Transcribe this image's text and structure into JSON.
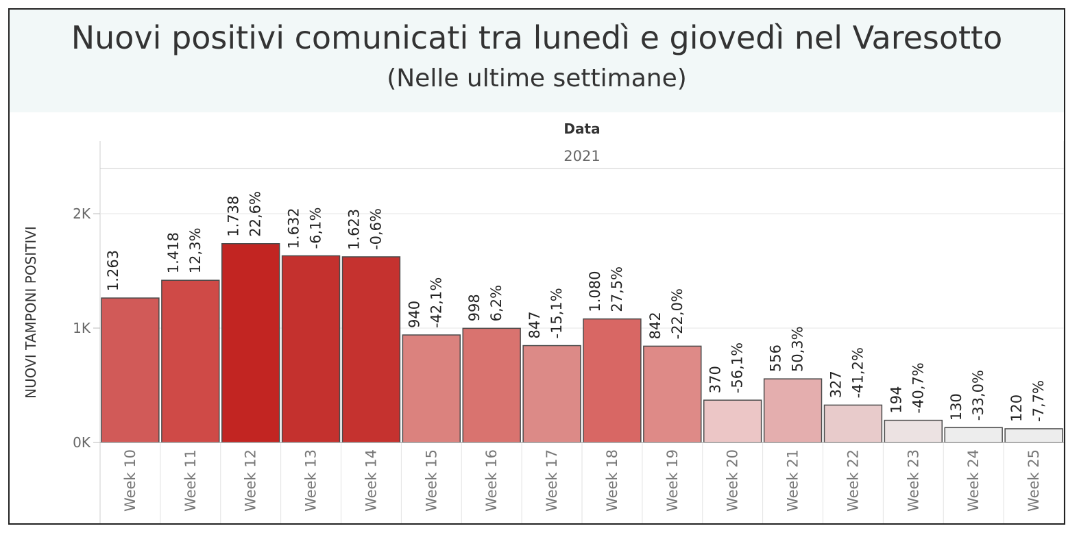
{
  "title": "Nuovi positivi comunicati tra lunedì e giovedì nel Varesotto",
  "subtitle": "(Nelle ultime settimane)",
  "chart_data": {
    "type": "bar",
    "column_header": "Data",
    "year": "2021",
    "ylabel": "NUOVI TAMPONI POSITIVI",
    "ylim": [
      0,
      2500
    ],
    "yticks": [
      {
        "value": 0,
        "label": "0K"
      },
      {
        "value": 1000,
        "label": "1K"
      },
      {
        "value": 2000,
        "label": "2K"
      }
    ],
    "grid": true,
    "categories": [
      "Week 10",
      "Week 11",
      "Week 12",
      "Week 13",
      "Week 14",
      "Week 15",
      "Week 16",
      "Week 17",
      "Week 18",
      "Week 19",
      "Week 20",
      "Week 21",
      "Week 22",
      "Week 23",
      "Week 24",
      "Week 25"
    ],
    "values": [
      1263,
      1418,
      1738,
      1632,
      1623,
      940,
      998,
      847,
      1080,
      842,
      370,
      556,
      327,
      194,
      130,
      120
    ],
    "value_labels": [
      "1.263",
      "1.418",
      "1.738",
      "1.632",
      "1.623",
      "940",
      "998",
      "847",
      "1.080",
      "842",
      "370",
      "556",
      "327",
      "194",
      "130",
      "120"
    ],
    "change_labels": [
      "",
      "12,3%",
      "22,6%",
      "-6,1%",
      "-0,6%",
      "-42,1%",
      "6,2%",
      "-15,1%",
      "27,5%",
      "-22,0%",
      "-56,1%",
      "50,3%",
      "-41,2%",
      "-40,7%",
      "-33,0%",
      "-7,7%"
    ],
    "bar_colors": [
      "#d15a58",
      "#cf4a47",
      "#c22522",
      "#c4312e",
      "#c5322f",
      "#db827e",
      "#d9736f",
      "#dc8a87",
      "#d86764",
      "#de8a87",
      "#ecc6c6",
      "#e4aeae",
      "#e8cbcb",
      "#ece2e2",
      "#ededed",
      "#ededed"
    ]
  }
}
